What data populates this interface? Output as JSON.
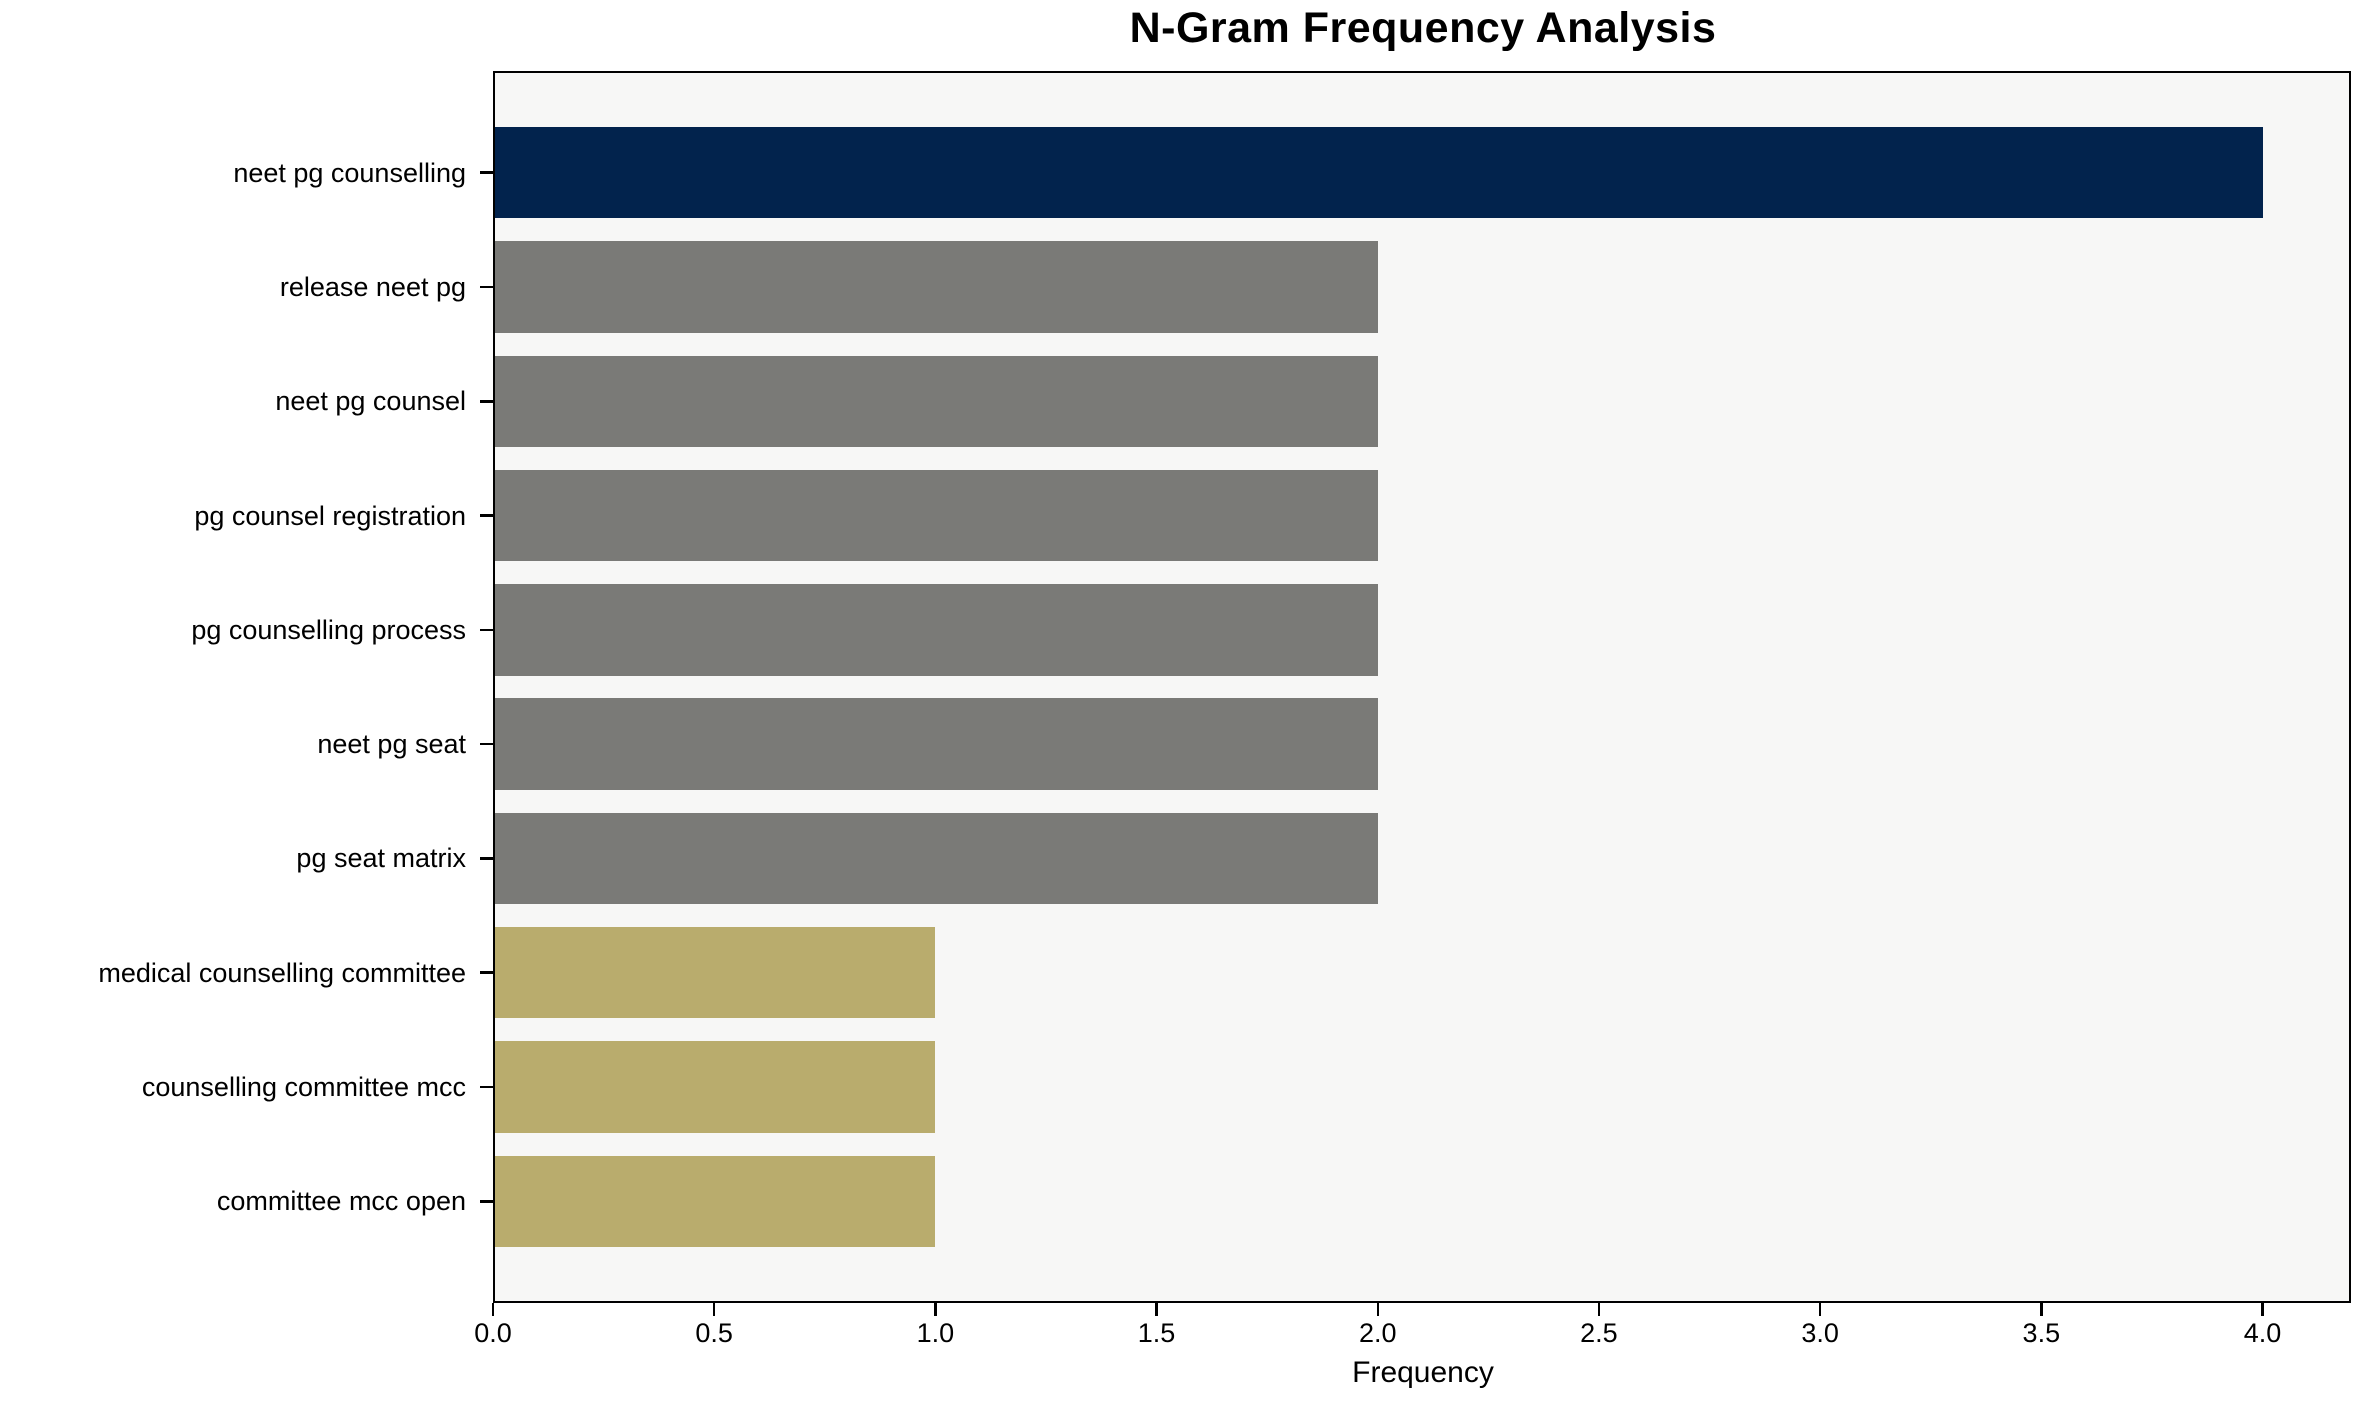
{
  "chart_data": {
    "type": "bar",
    "orientation": "horizontal",
    "title": "N-Gram Frequency Analysis",
    "xlabel": "Frequency",
    "ylabel": "",
    "categories": [
      "neet pg counselling",
      "release neet pg",
      "neet pg counsel",
      "pg counsel registration",
      "pg counselling process",
      "neet pg seat",
      "pg seat matrix",
      "medical counselling committee",
      "counselling committee mcc",
      "committee mcc open"
    ],
    "values": [
      4,
      2,
      2,
      2,
      2,
      2,
      2,
      1,
      1,
      1
    ],
    "bar_colors": [
      "#02234D",
      "#7A7A77",
      "#7A7A77",
      "#7A7A77",
      "#7A7A77",
      "#7A7A77",
      "#7A7A77",
      "#B9AC6D",
      "#B9AC6D",
      "#B9AC6D"
    ],
    "xlim": [
      0,
      4.2
    ],
    "xtick_values": [
      0,
      0.5,
      1,
      1.5,
      2,
      2.5,
      3,
      3.5,
      4
    ],
    "xtick_labels": [
      "0.0",
      "0.5",
      "1.0",
      "1.5",
      "2.0",
      "2.5",
      "3.0",
      "3.5",
      "4.0"
    ],
    "grid": false,
    "legend_position": "none",
    "plot_bg_color": "#F7F7F6",
    "figure_bg_color": "#FFFFFF",
    "axis_color": "#000000"
  }
}
